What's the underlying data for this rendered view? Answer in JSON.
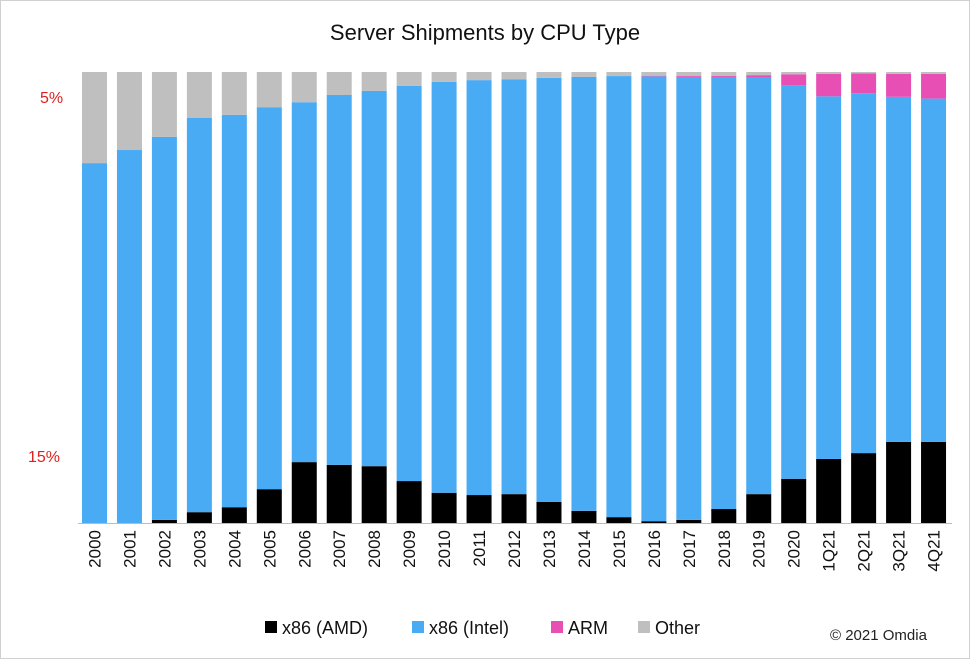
{
  "chart_data": {
    "type": "bar",
    "stacked": true,
    "title": "Server Shipments by CPU Type",
    "xlabel": "",
    "ylabel": "",
    "ylim": [
      0,
      100
    ],
    "grid": false,
    "legend_position": "bottom",
    "categories": [
      "2000",
      "2001",
      "2002",
      "2003",
      "2004",
      "2005",
      "2006",
      "2007",
      "2008",
      "2009",
      "2010",
      "2011",
      "2012",
      "2013",
      "2014",
      "2015",
      "2016",
      "2017",
      "2018",
      "2019",
      "2020",
      "1Q21",
      "2Q21",
      "3Q21",
      "4Q21"
    ],
    "series": [
      {
        "name": "x86 (AMD)",
        "color": "#000000",
        "values": [
          0,
          0,
          0.7,
          2.4,
          3.5,
          7.5,
          13.5,
          12.9,
          12.6,
          9.3,
          6.7,
          6.2,
          6.4,
          4.7,
          2.7,
          1.3,
          0.4,
          0.7,
          3.1,
          6.4,
          9.8,
          14.2,
          15.5,
          18,
          18
        ]
      },
      {
        "name": "x86 (Intel)",
        "color": "#4aabf5",
        "values": [
          79.8,
          82.7,
          84.9,
          87.4,
          87,
          84.7,
          79.8,
          82,
          83.2,
          87.6,
          91.1,
          92,
          92,
          94,
          96,
          97.8,
          98.6,
          98.2,
          95.6,
          92.3,
          87.3,
          80.4,
          79.8,
          76.5,
          76.1
        ]
      },
      {
        "name": "ARM",
        "color": "#e84fb4",
        "values": [
          0,
          0,
          0,
          0,
          0,
          0,
          0,
          0,
          0,
          0,
          0,
          0,
          0,
          0,
          0.2,
          0,
          0.1,
          0.2,
          0.4,
          0.6,
          2.4,
          5,
          4.4,
          5.1,
          5.5
        ]
      },
      {
        "name": "Other",
        "color": "#bfbfbf",
        "values": [
          20.2,
          17.3,
          14.4,
          10.2,
          9.5,
          7.8,
          6.7,
          5.1,
          4.2,
          3.1,
          2.2,
          1.8,
          1.6,
          1.3,
          1.1,
          0.9,
          0.9,
          0.9,
          0.9,
          0.7,
          0.5,
          0.4,
          0.3,
          0.4,
          0.4
        ]
      }
    ],
    "annotations": [
      {
        "text": "5%",
        "color": "#e02020"
      },
      {
        "text": "15%",
        "color": "#e02020"
      }
    ],
    "credit": "© 2021 Omdia"
  }
}
